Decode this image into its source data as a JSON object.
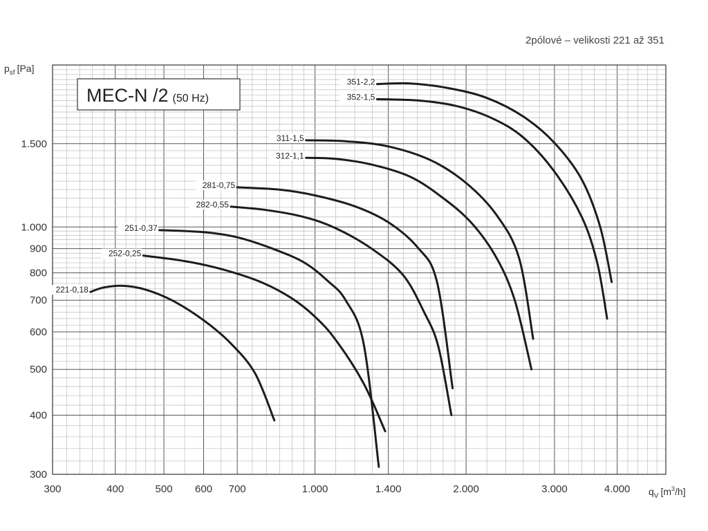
{
  "chart_data": {
    "type": "line",
    "subtitle": "2pólové – velikosti 221 až 351",
    "model": {
      "name": "MEC-N /2",
      "freq": "(50 Hz)"
    },
    "ylabel": {
      "main": "p",
      "sub": "sf",
      "unit": "[Pa]"
    },
    "xlabel": {
      "main": "q",
      "sub": "V",
      "unit_pre": "[m",
      "unit_sup": "3",
      "unit_post": "/h]"
    },
    "x_scale": "log",
    "y_scale": "log",
    "xlim": [
      300,
      5000
    ],
    "ylim": [
      300,
      2200
    ],
    "grid": true,
    "x_ticks": [
      {
        "value": 300,
        "label": "300"
      },
      {
        "value": 400,
        "label": "400"
      },
      {
        "value": 500,
        "label": "500"
      },
      {
        "value": 600,
        "label": "600"
      },
      {
        "value": 700,
        "label": "700"
      },
      {
        "value": 1000,
        "label": "1.000"
      },
      {
        "value": 1400,
        "label": "1.400"
      },
      {
        "value": 2000,
        "label": "2.000"
      },
      {
        "value": 3000,
        "label": "3.000"
      },
      {
        "value": 4000,
        "label": "4.000"
      }
    ],
    "y_ticks": [
      {
        "value": 300,
        "label": "300"
      },
      {
        "value": 400,
        "label": "400"
      },
      {
        "value": 500,
        "label": "500"
      },
      {
        "value": 600,
        "label": "600"
      },
      {
        "value": 700,
        "label": "700"
      },
      {
        "value": 800,
        "label": "800"
      },
      {
        "value": 900,
        "label": "900"
      },
      {
        "value": 1000,
        "label": "1.000"
      },
      {
        "value": 1500,
        "label": "1.500"
      }
    ],
    "series": [
      {
        "name": "221-0,18",
        "points": [
          [
            357,
            729
          ],
          [
            380,
            745
          ],
          [
            415,
            751
          ],
          [
            460,
            737
          ],
          [
            520,
            699
          ],
          [
            600,
            635
          ],
          [
            680,
            567
          ],
          [
            760,
            490
          ],
          [
            830,
            390
          ]
        ]
      },
      {
        "name": "252-0,25",
        "points": [
          [
            455,
            870
          ],
          [
            550,
            847
          ],
          [
            650,
            815
          ],
          [
            780,
            765
          ],
          [
            900,
            706
          ],
          [
            1000,
            646
          ],
          [
            1100,
            577
          ],
          [
            1250,
            467
          ],
          [
            1380,
            370
          ]
        ]
      },
      {
        "name": "251-0,37",
        "points": [
          [
            490,
            985
          ],
          [
            600,
            975
          ],
          [
            700,
            951
          ],
          [
            820,
            901
          ],
          [
            950,
            842
          ],
          [
            1060,
            769
          ],
          [
            1150,
            701
          ],
          [
            1250,
            567
          ],
          [
            1340,
            311
          ]
        ]
      },
      {
        "name": "282-0,55",
        "points": [
          [
            680,
            1104
          ],
          [
            800,
            1086
          ],
          [
            950,
            1050
          ],
          [
            1100,
            994
          ],
          [
            1300,
            898
          ],
          [
            1500,
            790
          ],
          [
            1650,
            660
          ],
          [
            1760,
            560
          ],
          [
            1870,
            400
          ]
        ]
      },
      {
        "name": "281-0,75",
        "points": [
          [
            700,
            1213
          ],
          [
            850,
            1199
          ],
          [
            1000,
            1166
          ],
          [
            1200,
            1106
          ],
          [
            1400,
            1023
          ],
          [
            1600,
            906
          ],
          [
            1750,
            766
          ],
          [
            1880,
            456
          ]
        ]
      },
      {
        "name": "312-1,1",
        "points": [
          [
            960,
            1400
          ],
          [
            1100,
            1393
          ],
          [
            1300,
            1354
          ],
          [
            1550,
            1276
          ],
          [
            1800,
            1151
          ],
          [
            2050,
            1020
          ],
          [
            2300,
            860
          ],
          [
            2500,
            700
          ],
          [
            2700,
            500
          ]
        ]
      },
      {
        "name": "311-1,5",
        "points": [
          [
            960,
            1525
          ],
          [
            1150,
            1518
          ],
          [
            1400,
            1480
          ],
          [
            1700,
            1384
          ],
          [
            2000,
            1239
          ],
          [
            2300,
            1060
          ],
          [
            2550,
            860
          ],
          [
            2720,
            580
          ]
        ]
      },
      {
        "name": "352-1,5",
        "points": [
          [
            1330,
            1863
          ],
          [
            1600,
            1851
          ],
          [
            1900,
            1805
          ],
          [
            2250,
            1699
          ],
          [
            2600,
            1546
          ],
          [
            3000,
            1309
          ],
          [
            3400,
            1050
          ],
          [
            3650,
            840
          ],
          [
            3820,
            640
          ]
        ]
      },
      {
        "name": "351-2,2",
        "points": [
          [
            1330,
            2005
          ],
          [
            1550,
            2011
          ],
          [
            1850,
            1965
          ],
          [
            2200,
            1874
          ],
          [
            2600,
            1712
          ],
          [
            3000,
            1506
          ],
          [
            3400,
            1260
          ],
          [
            3700,
            1000
          ],
          [
            3900,
            765
          ]
        ]
      }
    ]
  }
}
